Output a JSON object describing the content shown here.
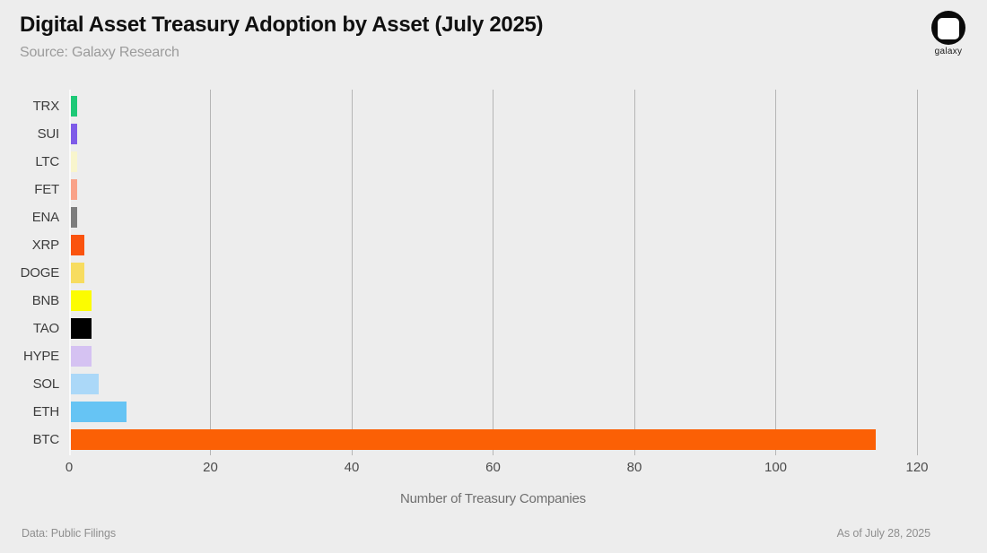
{
  "header": {
    "title": "Digital Asset Treasury Adoption by Asset (July 2025)",
    "subtitle": "Source: Galaxy Research",
    "logo_text": "galaxy"
  },
  "chart_data": {
    "type": "bar",
    "orientation": "horizontal",
    "title": "Digital Asset Treasury Adoption by Asset (July 2025)",
    "categories": [
      "TRX",
      "SUI",
      "LTC",
      "FET",
      "ENA",
      "XRP",
      "DOGE",
      "BNB",
      "TAO",
      "HYPE",
      "SOL",
      "ETH",
      "BTC"
    ],
    "values": [
      1,
      1,
      1,
      1,
      1,
      2,
      2,
      3,
      3,
      3,
      4,
      8,
      114
    ],
    "bar_colors": [
      "#1ec977",
      "#7e5be8",
      "#f8f5cd",
      "#f9a288",
      "#7d7d7d",
      "#fa530e",
      "#f7dc60",
      "#fcfc00",
      "#000000",
      "#d5c2f2",
      "#abd8f8",
      "#66c4f4",
      "#fb6005"
    ],
    "xlabel": "Number of Treasury Companies",
    "x_ticks": [
      0,
      20,
      40,
      60,
      80,
      100,
      120
    ],
    "xlim": [
      0,
      121.5
    ],
    "grid": "vertical",
    "legend": "none"
  },
  "footer": {
    "left": "Data: Public Filings",
    "right": "As of July 28, 2025"
  },
  "colors": {
    "background": "#ededed",
    "grid": "#b5b5b5",
    "zero_line": "#fafafa",
    "title_text": "#101010",
    "subtitle_text": "#9b9b9b",
    "category_text": "#3d3d3d",
    "tick_text": "#4c4c4c",
    "axis_title_text": "#6f6f6f",
    "footer_text": "#8f8f8f",
    "logo": "#0a0a0a"
  }
}
